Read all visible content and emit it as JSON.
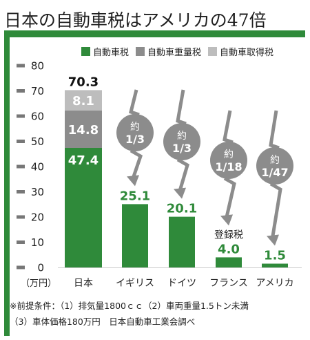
{
  "title": "日本の自動車税はアメリカの47倍",
  "chart_data": {
    "type": "bar",
    "categories": [
      "日本",
      "イギリス",
      "ドイツ",
      "フランス",
      "アメリカ"
    ],
    "series": [
      {
        "name": "自動車税",
        "values": [
          47.4,
          25.1,
          20.1,
          4.0,
          1.5
        ],
        "color": "#2f8a3a"
      },
      {
        "name": "自動車重量税",
        "values": [
          14.8,
          0,
          0,
          0,
          0
        ],
        "color": "#8c8c8c"
      },
      {
        "name": "自動車取得税",
        "values": [
          8.1,
          0,
          0,
          0,
          0
        ],
        "color": "#bdbdbd"
      }
    ],
    "totals": [
      "70.3",
      null,
      null,
      null,
      null
    ],
    "data_labels": {
      "自動車税": [
        "47.4",
        "25.1",
        "20.1",
        "4.0",
        "1.5"
      ],
      "自動車重量税": [
        "14.8"
      ],
      "自動車取得税": [
        "8.1"
      ]
    },
    "ratio_labels": [
      {
        "category": "イギリス",
        "line1": "約",
        "line2": "1/3"
      },
      {
        "category": "ドイツ",
        "line1": "約",
        "line2": "1/3"
      },
      {
        "category": "フランス",
        "line1": "約",
        "line2": "1/18"
      },
      {
        "category": "アメリカ",
        "line1": "約",
        "line2": "1/47"
      }
    ],
    "bar_notes": [
      {
        "category": "フランス",
        "text": "登録税"
      }
    ],
    "y_ticks": [
      "0",
      "10",
      "20",
      "30",
      "40",
      "50",
      "60",
      "70",
      "80"
    ],
    "ylim": [
      0,
      80
    ],
    "y_unit": "（万円）",
    "legend_position": "top-right",
    "grid": false
  },
  "footnotes": [
    "※前提条件：（1）排気量1800ｃｃ（2）車両重量1.5トン未満",
    "（3）車体価格180万円　日本自動車工業会調べ"
  ]
}
